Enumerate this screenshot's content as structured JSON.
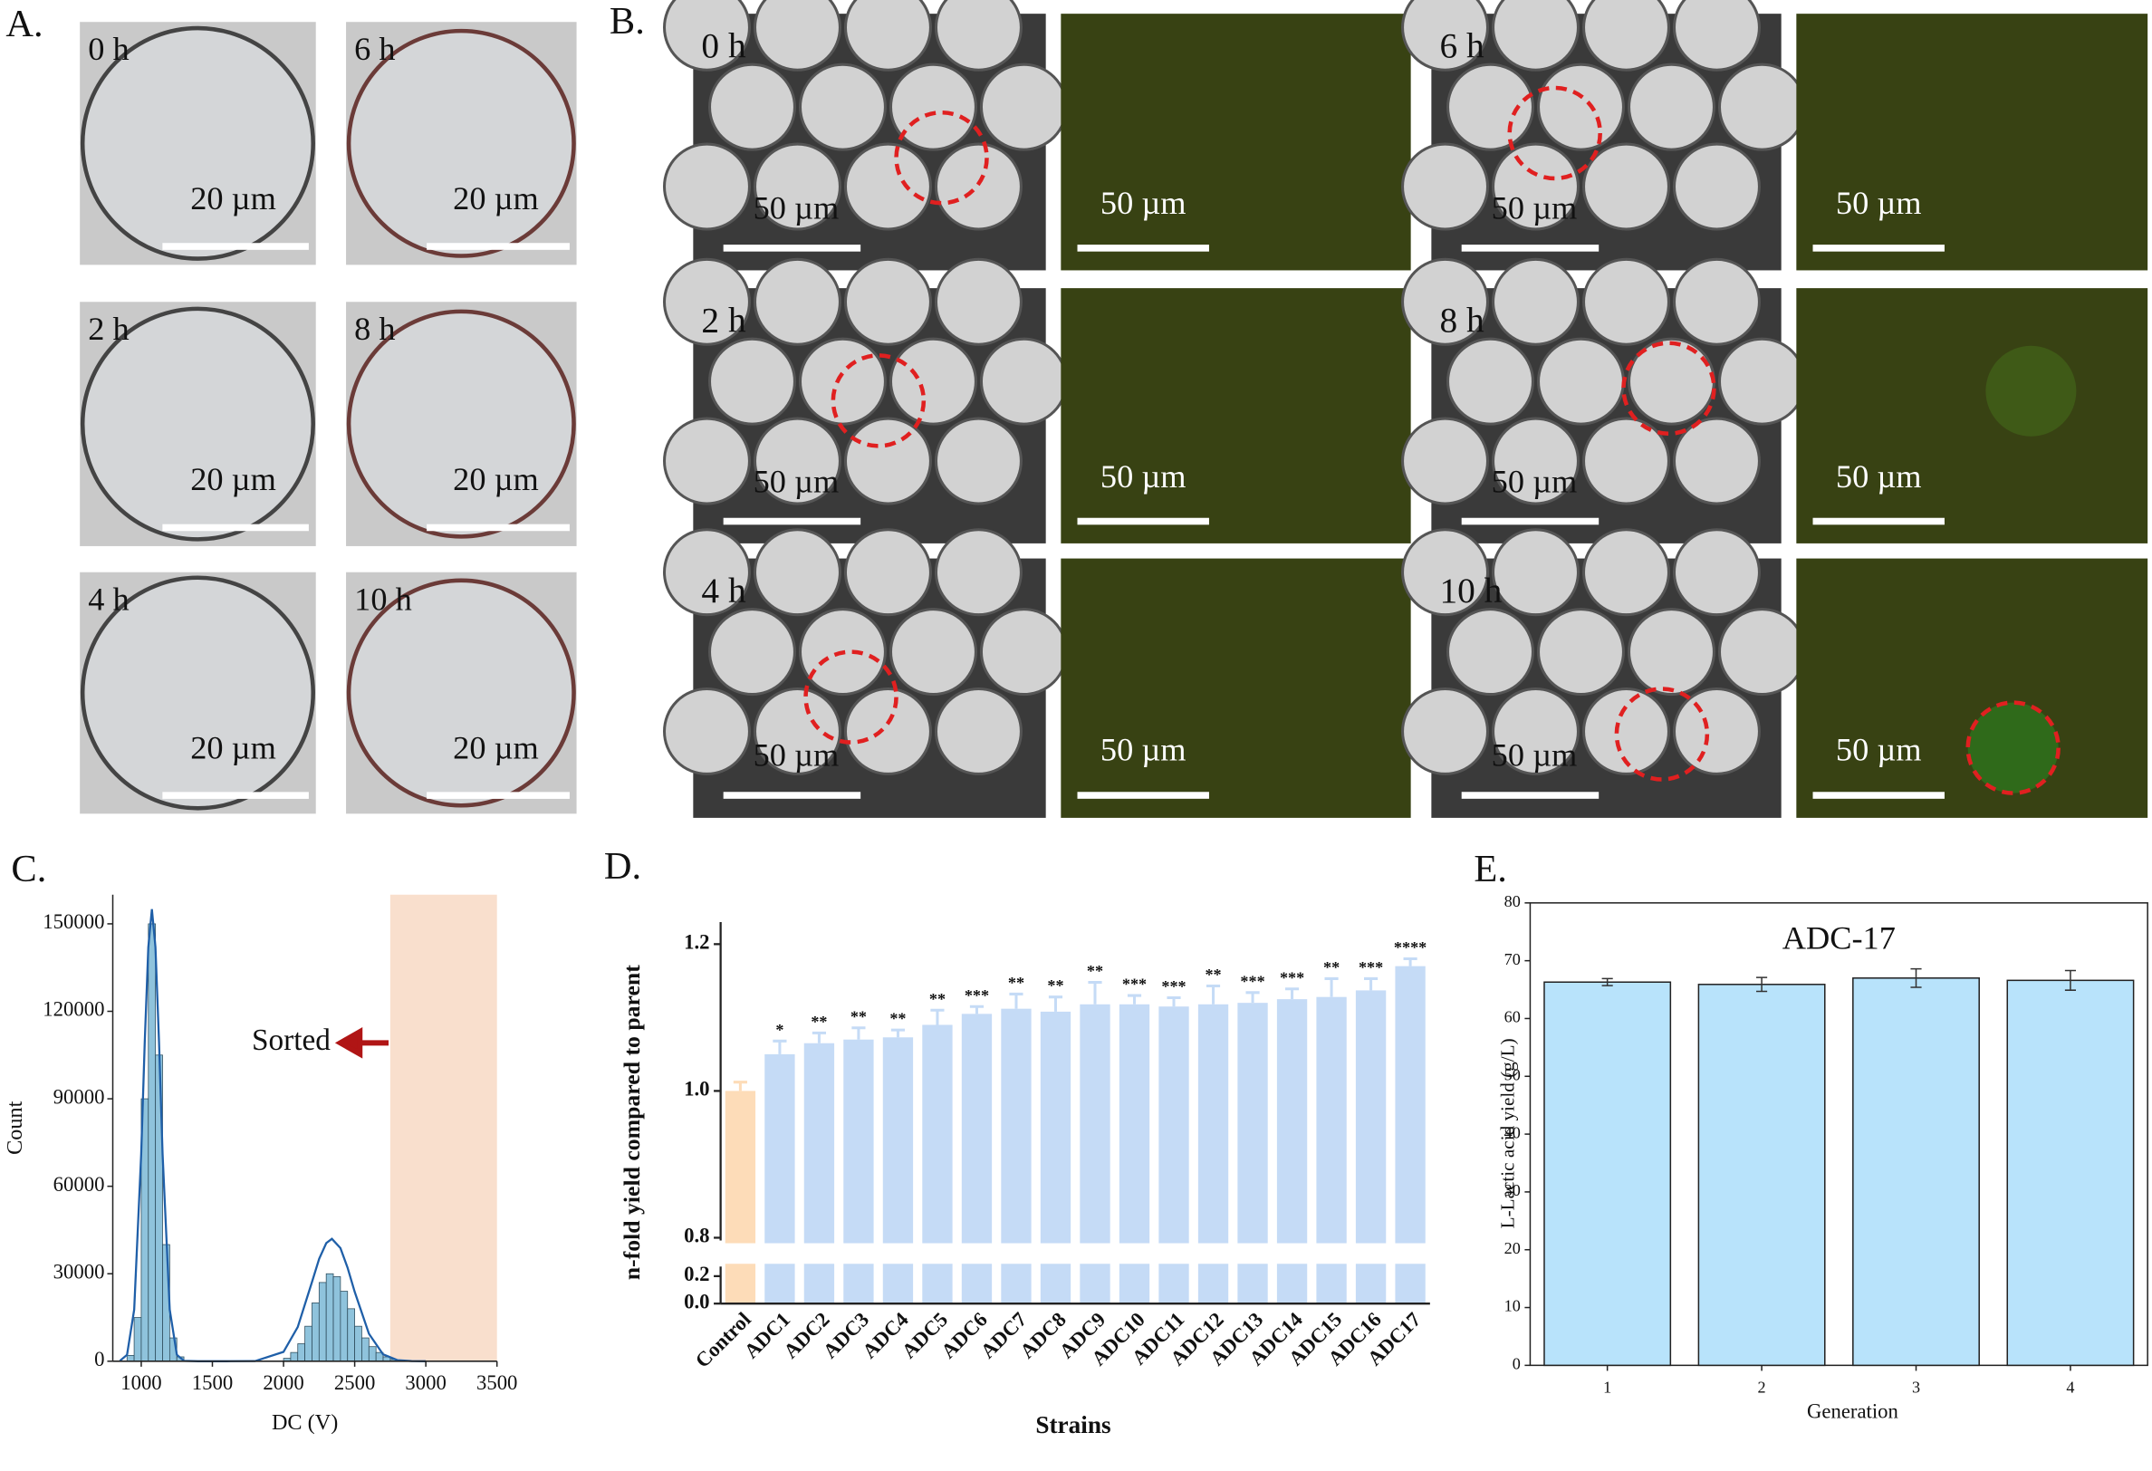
{
  "panel_a": {
    "label": "A.",
    "frames": [
      {
        "time": "0 h",
        "scale": "20 µm"
      },
      {
        "time": "6 h",
        "scale": "20 µm"
      },
      {
        "time": "2 h",
        "scale": "20 µm"
      },
      {
        "time": "8 h",
        "scale": "20 µm"
      },
      {
        "time": "4 h",
        "scale": "20 µm"
      },
      {
        "time": "10 h",
        "scale": "20 µm"
      }
    ]
  },
  "panel_b": {
    "label": "B.",
    "frames": [
      {
        "time": "0 h",
        "scale": "50 µm",
        "fluorescence_scale": "50 µm"
      },
      {
        "time": "6 h",
        "scale": "50 µm",
        "fluorescence_scale": "50 µm"
      },
      {
        "time": "2 h",
        "scale": "50 µm",
        "fluorescence_scale": "50 µm"
      },
      {
        "time": "8 h",
        "scale": "50 µm",
        "fluorescence_scale": "50 µm"
      },
      {
        "time": "4 h",
        "scale": "50 µm",
        "fluorescence_scale": "50 µm"
      },
      {
        "time": "10 h",
        "scale": "50 µm",
        "fluorescence_scale": "50 µm"
      }
    ]
  },
  "chart_data": [
    {
      "type": "histogram",
      "panel_label": "C.",
      "x_label": "DC (V)",
      "y_label": "Count",
      "bins": [
        900,
        950,
        1000,
        1050,
        1100,
        1150,
        1200,
        1250,
        1300,
        1350,
        1400,
        1450,
        1500,
        1550,
        1600,
        1650,
        1700,
        1750,
        1800,
        1850,
        1900,
        1950,
        2000,
        2050,
        2100,
        2150,
        2200,
        2250,
        2300,
        2350,
        2400,
        2450,
        2500,
        2550,
        2600,
        2650,
        2700,
        2750,
        2800
      ],
      "counts": [
        2000,
        15000,
        90000,
        150000,
        105000,
        40000,
        8000,
        1500,
        0,
        0,
        0,
        0,
        0,
        0,
        0,
        0,
        0,
        0,
        0,
        0,
        0,
        0,
        1000,
        3000,
        6000,
        12000,
        20000,
        27000,
        30000,
        29000,
        24000,
        18000,
        12000,
        8000,
        5000,
        3000,
        1500,
        600
      ],
      "color": "#8fc3dc",
      "fit": {
        "x": [
          850,
          900,
          950,
          1000,
          1025,
          1050,
          1075,
          1100,
          1125,
          1150,
          1200,
          1250,
          1300,
          1400,
          1600,
          1800,
          2000,
          2100,
          2200,
          2250,
          2300,
          2340,
          2400,
          2450,
          2500,
          2600,
          2700,
          2800,
          2900,
          3000
        ],
        "values": [
          140,
          2200,
          17700,
          71000,
          109500,
          142000,
          155000,
          142000,
          109500,
          71000,
          17700,
          2200,
          140,
          0,
          0,
          64,
          3200,
          11700,
          27200,
          35100,
          40500,
          42000,
          38800,
          32100,
          23800,
          9400,
          2350,
          380,
          40,
          0
        ],
        "color": "#1f5fa8"
      },
      "sorted_range": [
        2750,
        3500
      ],
      "sorted_color": "#f9dfcd",
      "annotation": "Sorted",
      "xlim": [
        800,
        3500
      ],
      "xticks": [
        1000,
        1500,
        2000,
        2500,
        3000,
        3500
      ],
      "ylim": [
        0,
        160000
      ],
      "yticks": [
        0,
        30000,
        60000,
        90000,
        120000,
        150000
      ]
    },
    {
      "type": "bar",
      "panel_label": "D.",
      "x_label": "Strains",
      "y_label": "n-fold yield compared to parent",
      "categories": [
        "Control",
        "ADC1",
        "ADC2",
        "ADC3",
        "ADC4",
        "ADC5",
        "ADC6",
        "ADC7",
        "ADC8",
        "ADC9",
        "ADC10",
        "ADC11",
        "ADC12",
        "ADC13",
        "ADC14",
        "ADC15",
        "ADC16",
        "ADC17"
      ],
      "values": [
        1.0,
        1.05,
        1.065,
        1.07,
        1.073,
        1.09,
        1.105,
        1.112,
        1.108,
        1.118,
        1.118,
        1.115,
        1.118,
        1.12,
        1.125,
        1.128,
        1.137,
        1.17
      ],
      "errors": [
        0.012,
        0.018,
        0.014,
        0.016,
        0.01,
        0.02,
        0.01,
        0.02,
        0.02,
        0.03,
        0.012,
        0.012,
        0.025,
        0.014,
        0.014,
        0.025,
        0.016,
        0.01
      ],
      "significance": [
        null,
        "*",
        "**",
        "**",
        "**",
        "**",
        "***",
        "**",
        "**",
        "**",
        "***",
        "***",
        "**",
        "***",
        "***",
        "**",
        "***",
        "****"
      ],
      "colors": [
        "#fddcb8",
        "#c5dbf6",
        "#c5dbf6",
        "#c5dbf6",
        "#c5dbf6",
        "#c5dbf6",
        "#c5dbf6",
        "#c5dbf6",
        "#c5dbf6",
        "#c5dbf6",
        "#c5dbf6",
        "#c5dbf6",
        "#c5dbf6",
        "#c5dbf6",
        "#c5dbf6",
        "#c5dbf6",
        "#c5dbf6",
        "#c5dbf6"
      ],
      "ylim": [
        0,
        1.23
      ],
      "ybreak": [
        0.25,
        0.8
      ],
      "yticks": [
        {
          "value": 0,
          "label": "0.0"
        },
        {
          "value": 0.2,
          "label": "0.2"
        },
        {
          "value": 0.8,
          "label": "0.8"
        },
        {
          "value": 1,
          "label": "1.0"
        },
        {
          "value": 1.2,
          "label": "1.2"
        }
      ]
    },
    {
      "type": "bar",
      "panel_label": "E.",
      "title": "ADC-17",
      "x_label": "Generation",
      "y_label": "L-Lactic acid yield (g/L)",
      "categories": [
        "1",
        "2",
        "3",
        "4"
      ],
      "values": [
        66.3,
        65.9,
        67.0,
        66.6
      ],
      "errors": [
        0.6,
        1.2,
        1.6,
        1.7
      ],
      "color": "#b8e3fb",
      "ylim": [
        0,
        80
      ],
      "yticks": [
        0,
        10,
        20,
        30,
        40,
        50,
        60,
        70,
        80
      ]
    }
  ]
}
